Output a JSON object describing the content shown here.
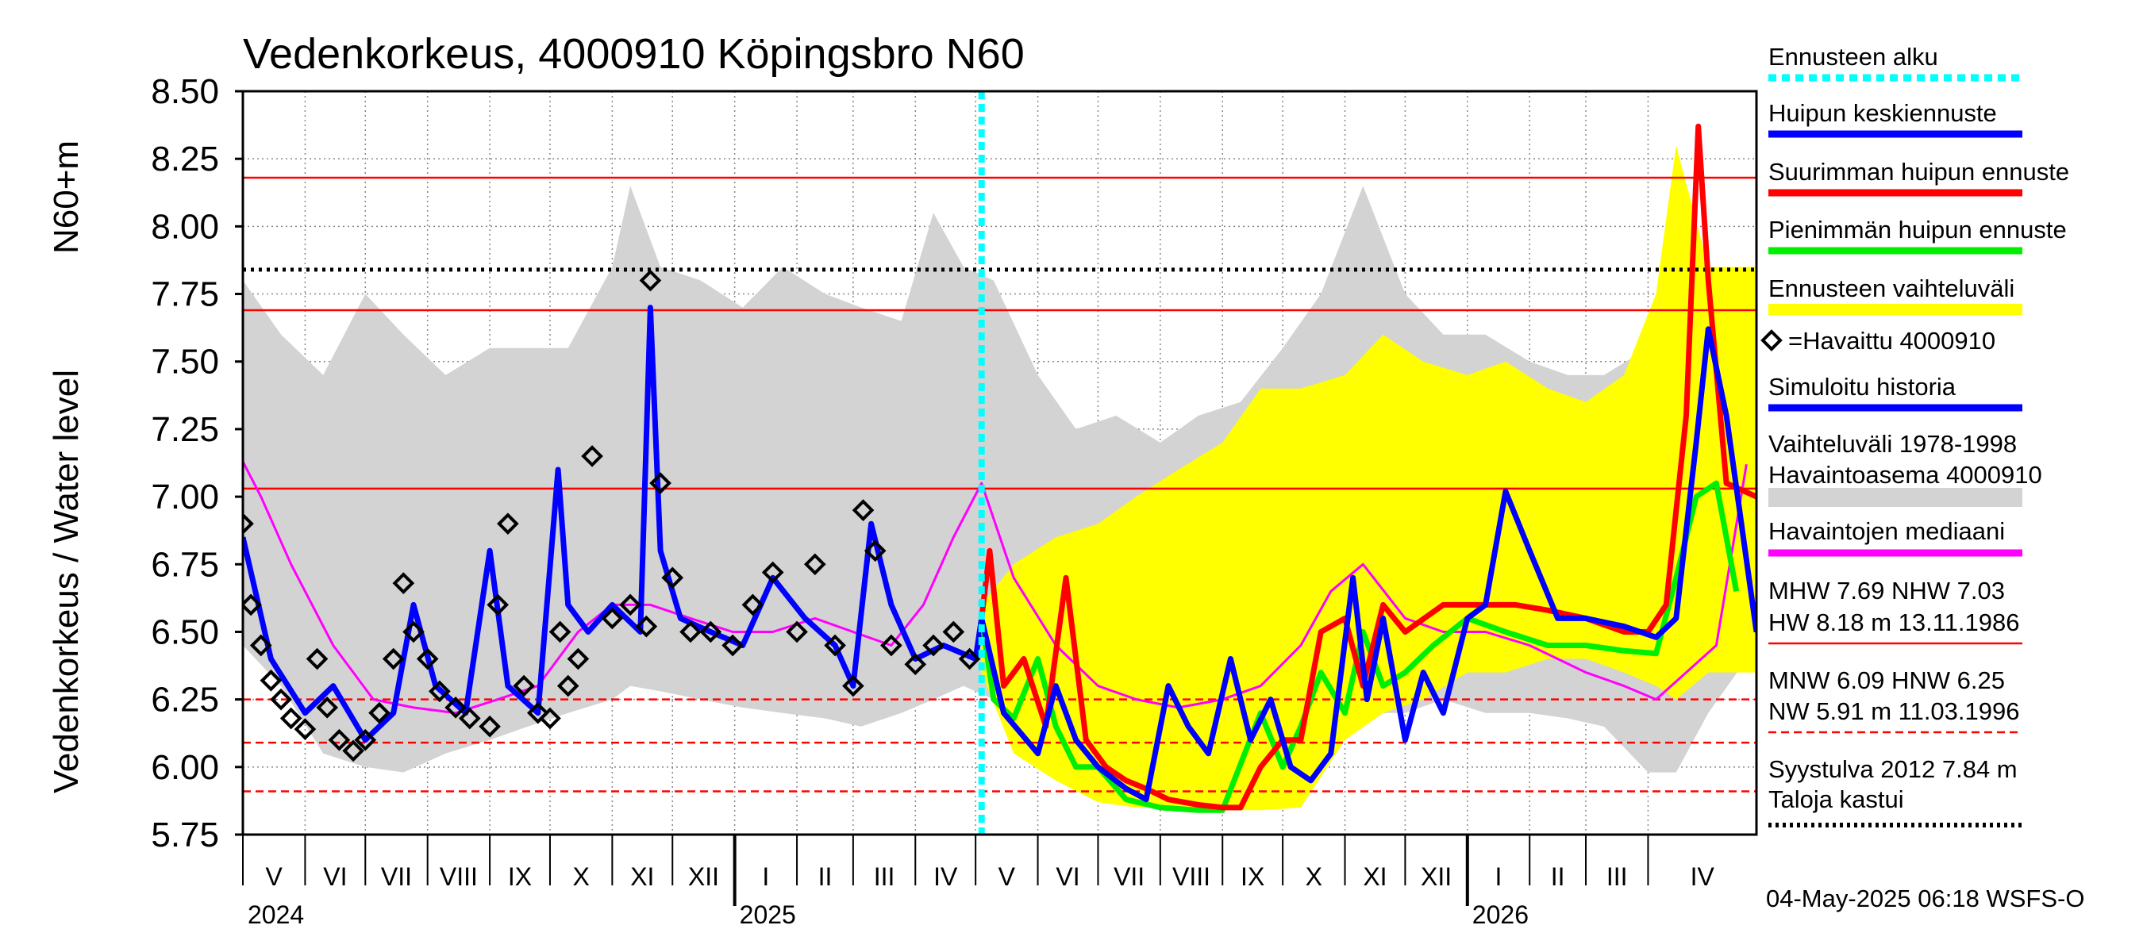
{
  "chart_data": {
    "type": "line",
    "title": "Vedenkorkeus, 4000910 Köpingsbro N60",
    "ylabel": "Vedenkorkeus / Water level",
    "ylabel_unit": "N60+m",
    "ylim": [
      5.75,
      8.5
    ],
    "yticks": [
      "5.75",
      "6.00",
      "6.25",
      "6.50",
      "6.75",
      "7.00",
      "7.25",
      "7.50",
      "7.75",
      "8.00",
      "8.25",
      "8.50"
    ],
    "x_start": "2024-05-01",
    "x_end": "2026-05-25",
    "forecast_start": "2025-05-04",
    "grid": true,
    "months": [
      {
        "label": "V",
        "start": "2024-05-01"
      },
      {
        "label": "VI",
        "start": "2024-06-01"
      },
      {
        "label": "VII",
        "start": "2024-07-01"
      },
      {
        "label": "VIII",
        "start": "2024-08-01"
      },
      {
        "label": "IX",
        "start": "2024-09-01"
      },
      {
        "label": "X",
        "start": "2024-10-01"
      },
      {
        "label": "XI",
        "start": "2024-11-01"
      },
      {
        "label": "XII",
        "start": "2024-12-01"
      },
      {
        "label": "I",
        "start": "2025-01-01"
      },
      {
        "label": "II",
        "start": "2025-02-01"
      },
      {
        "label": "III",
        "start": "2025-03-01"
      },
      {
        "label": "IV",
        "start": "2025-04-01"
      },
      {
        "label": "V",
        "start": "2025-05-01"
      },
      {
        "label": "VI",
        "start": "2025-06-01"
      },
      {
        "label": "VII",
        "start": "2025-07-01"
      },
      {
        "label": "VIII",
        "start": "2025-08-01"
      },
      {
        "label": "IX",
        "start": "2025-09-01"
      },
      {
        "label": "X",
        "start": "2025-10-01"
      },
      {
        "label": "XI",
        "start": "2025-11-01"
      },
      {
        "label": "XII",
        "start": "2025-12-01"
      },
      {
        "label": "I",
        "start": "2026-01-01"
      },
      {
        "label": "II",
        "start": "2026-02-01"
      },
      {
        "label": "III",
        "start": "2026-03-01"
      },
      {
        "label": "IV",
        "start": "2026-04-01"
      }
    ],
    "years": [
      {
        "label": "2024",
        "start": "2024-05-01"
      },
      {
        "label": "2025",
        "start": "2025-01-01"
      },
      {
        "label": "2026",
        "start": "2026-01-01"
      }
    ],
    "reference_lines": [
      {
        "key": "HW",
        "value": 8.18,
        "color": "#ff0000",
        "style": "solid"
      },
      {
        "key": "MHW",
        "value": 7.69,
        "color": "#ff0000",
        "style": "solid"
      },
      {
        "key": "NHW",
        "value": 7.03,
        "color": "#ff0000",
        "style": "solid"
      },
      {
        "key": "HNW",
        "value": 6.25,
        "color": "#ff0000",
        "style": "dashed"
      },
      {
        "key": "MNW",
        "value": 6.09,
        "color": "#ff0000",
        "style": "dashed"
      },
      {
        "key": "NW",
        "value": 5.91,
        "color": "#ff0000",
        "style": "dashed"
      },
      {
        "key": "Syystulva 2012",
        "value": 7.84,
        "color": "#000000",
        "style": "dotted"
      }
    ],
    "historical_range": {
      "name": "Vaihteluväli 1978-1998 Havaintoasema 4000910",
      "color": "#d3d3d3",
      "x": [
        "2024-05-01",
        "2024-05-20",
        "2024-06-10",
        "2024-07-01",
        "2024-07-20",
        "2024-08-10",
        "2024-09-01",
        "2024-09-20",
        "2024-10-10",
        "2024-11-01",
        "2024-11-10",
        "2024-11-25",
        "2024-12-15",
        "2025-01-05",
        "2025-01-25",
        "2025-02-15",
        "2025-03-05",
        "2025-03-25",
        "2025-04-10",
        "2025-04-25",
        "2025-05-10",
        "2025-06-01",
        "2025-06-20",
        "2025-07-10",
        "2025-08-01",
        "2025-08-20",
        "2025-09-10",
        "2025-10-01",
        "2025-10-20",
        "2025-11-10",
        "2025-12-01",
        "2025-12-20",
        "2026-01-10",
        "2026-02-01",
        "2026-02-20",
        "2026-03-10",
        "2026-04-01",
        "2026-04-15",
        "2026-05-01",
        "2026-05-25"
      ],
      "low": [
        6.45,
        6.3,
        6.05,
        6.0,
        5.98,
        6.05,
        6.1,
        6.15,
        6.2,
        6.25,
        6.3,
        6.28,
        6.25,
        6.22,
        6.2,
        6.18,
        6.15,
        6.2,
        6.25,
        6.3,
        6.25,
        6.15,
        6.1,
        6.0,
        6.0,
        6.05,
        6.05,
        6.1,
        6.15,
        6.2,
        6.2,
        6.25,
        6.2,
        6.2,
        6.18,
        6.15,
        5.98,
        5.98,
        6.2,
        6.45
      ],
      "high": [
        7.8,
        7.6,
        7.45,
        7.75,
        7.6,
        7.45,
        7.55,
        7.55,
        7.55,
        7.85,
        8.15,
        7.85,
        7.8,
        7.7,
        7.85,
        7.75,
        7.7,
        7.65,
        8.05,
        7.85,
        7.8,
        7.45,
        7.25,
        7.3,
        7.2,
        7.3,
        7.35,
        7.55,
        7.75,
        8.15,
        7.75,
        7.6,
        7.6,
        7.5,
        7.45,
        7.45,
        7.55,
        7.75,
        7.7,
        7.8
      ]
    },
    "forecast_range": {
      "name": "Ennusteen vaihteluväli",
      "color": "#ffff00",
      "x": [
        "2025-05-04",
        "2025-05-20",
        "2025-06-10",
        "2025-07-01",
        "2025-07-20",
        "2025-08-10",
        "2025-09-01",
        "2025-09-20",
        "2025-10-10",
        "2025-11-01",
        "2025-11-20",
        "2025-12-10",
        "2026-01-01",
        "2026-01-20",
        "2026-02-10",
        "2026-03-01",
        "2026-03-20",
        "2026-04-05",
        "2026-04-15",
        "2026-05-01",
        "2026-05-25"
      ],
      "low": [
        6.35,
        6.05,
        5.95,
        5.87,
        5.85,
        5.85,
        5.84,
        5.84,
        5.85,
        6.1,
        6.2,
        6.25,
        6.35,
        6.35,
        6.4,
        6.4,
        6.35,
        6.3,
        6.25,
        6.35,
        6.35
      ],
      "high": [
        6.6,
        6.75,
        6.85,
        6.9,
        7.0,
        7.1,
        7.2,
        7.4,
        7.4,
        7.45,
        7.6,
        7.5,
        7.45,
        7.5,
        7.4,
        7.35,
        7.45,
        7.75,
        8.3,
        7.85,
        7.85
      ]
    },
    "series": [
      {
        "name": "Havaintojen mediaani",
        "color": "#ff00ff",
        "x": [
          "2024-05-01",
          "2024-05-10",
          "2024-05-25",
          "2024-06-15",
          "2024-07-05",
          "2024-07-25",
          "2024-08-15",
          "2024-09-05",
          "2024-09-25",
          "2024-10-15",
          "2024-11-01",
          "2024-11-20",
          "2024-12-10",
          "2024-12-31",
          "2025-01-20",
          "2025-02-10",
          "2025-03-01",
          "2025-03-20",
          "2025-04-05",
          "2025-04-20",
          "2025-05-04",
          "2025-05-20",
          "2025-06-10",
          "2025-07-01",
          "2025-07-20",
          "2025-08-10",
          "2025-09-01",
          "2025-09-20",
          "2025-10-10",
          "2025-10-25",
          "2025-11-10",
          "2025-12-01",
          "2025-12-20",
          "2026-01-10",
          "2026-02-01",
          "2026-03-01",
          "2026-03-20",
          "2026-04-05",
          "2026-04-20",
          "2026-05-05",
          "2026-05-20"
        ],
        "y": [
          7.13,
          7.0,
          6.75,
          6.45,
          6.25,
          6.22,
          6.2,
          6.25,
          6.3,
          6.5,
          6.6,
          6.6,
          6.55,
          6.5,
          6.5,
          6.55,
          6.5,
          6.45,
          6.6,
          6.85,
          7.05,
          6.7,
          6.45,
          6.3,
          6.25,
          6.22,
          6.25,
          6.3,
          6.45,
          6.65,
          6.75,
          6.55,
          6.5,
          6.5,
          6.45,
          6.35,
          6.3,
          6.25,
          6.35,
          6.45,
          7.12
        ]
      },
      {
        "name": "Simuloitu historia",
        "color": "#0000ff",
        "x": [
          "2024-05-01",
          "2024-05-15",
          "2024-06-01",
          "2024-06-15",
          "2024-07-01",
          "2024-07-15",
          "2024-07-25",
          "2024-08-05",
          "2024-08-20",
          "2024-09-01",
          "2024-09-10",
          "2024-09-25",
          "2024-10-05",
          "2024-10-10",
          "2024-10-20",
          "2024-11-01",
          "2024-11-15",
          "2024-11-20",
          "2024-11-25",
          "2024-12-05",
          "2024-12-20",
          "2025-01-05",
          "2025-01-20",
          "2025-02-05",
          "2025-02-20",
          "2025-03-01",
          "2025-03-10",
          "2025-03-20",
          "2025-04-01",
          "2025-04-15",
          "2025-05-01",
          "2025-05-04"
        ],
        "y": [
          6.85,
          6.4,
          6.2,
          6.3,
          6.1,
          6.2,
          6.6,
          6.3,
          6.2,
          6.8,
          6.3,
          6.2,
          7.1,
          6.6,
          6.5,
          6.6,
          6.5,
          7.7,
          6.8,
          6.55,
          6.5,
          6.45,
          6.7,
          6.55,
          6.45,
          6.3,
          6.9,
          6.6,
          6.4,
          6.45,
          6.4,
          6.55
        ]
      },
      {
        "name": "Havaittu 4000910",
        "color": "#000000",
        "marker": "diamond",
        "x": [
          "2024-05-01",
          "2024-05-05",
          "2024-05-10",
          "2024-05-15",
          "2024-05-20",
          "2024-05-25",
          "2024-06-01",
          "2024-06-07",
          "2024-06-12",
          "2024-06-18",
          "2024-06-25",
          "2024-07-01",
          "2024-07-08",
          "2024-07-15",
          "2024-07-20",
          "2024-07-25",
          "2024-08-01",
          "2024-08-07",
          "2024-08-15",
          "2024-08-22",
          "2024-09-01",
          "2024-09-05",
          "2024-09-10",
          "2024-09-18",
          "2024-09-25",
          "2024-10-01",
          "2024-10-06",
          "2024-10-10",
          "2024-10-15",
          "2024-10-22",
          "2024-11-01",
          "2024-11-10",
          "2024-11-18",
          "2024-11-20",
          "2024-11-25",
          "2024-12-01",
          "2024-12-10",
          "2024-12-20",
          "2024-12-31",
          "2025-01-10",
          "2025-01-20",
          "2025-02-01",
          "2025-02-10",
          "2025-02-20",
          "2025-03-01",
          "2025-03-06",
          "2025-03-12",
          "2025-03-20",
          "2025-04-01",
          "2025-04-10",
          "2025-04-20",
          "2025-04-28"
        ],
        "y": [
          6.9,
          6.6,
          6.45,
          6.32,
          6.25,
          6.18,
          6.14,
          6.4,
          6.22,
          6.1,
          6.06,
          6.1,
          6.2,
          6.4,
          6.68,
          6.5,
          6.4,
          6.28,
          6.22,
          6.18,
          6.15,
          6.6,
          6.9,
          6.3,
          6.2,
          6.18,
          6.5,
          6.3,
          6.4,
          7.15,
          6.55,
          6.6,
          6.52,
          7.8,
          7.05,
          6.7,
          6.5,
          6.5,
          6.45,
          6.6,
          6.72,
          6.5,
          6.75,
          6.45,
          6.3,
          6.95,
          6.8,
          6.45,
          6.38,
          6.45,
          6.5,
          6.4
        ]
      },
      {
        "name": "Pienimmän huipun ennuste",
        "color": "#00ee00",
        "x": [
          "2025-05-04",
          "2025-05-10",
          "2025-05-20",
          "2025-06-01",
          "2025-06-10",
          "2025-06-20",
          "2025-07-01",
          "2025-07-15",
          "2025-08-01",
          "2025-08-20",
          "2025-09-01",
          "2025-09-20",
          "2025-10-01",
          "2025-10-10",
          "2025-10-20",
          "2025-11-01",
          "2025-11-10",
          "2025-11-20",
          "2025-12-01",
          "2025-12-15",
          "2026-01-01",
          "2026-01-20",
          "2026-02-10",
          "2026-03-01",
          "2026-03-20",
          "2026-04-05",
          "2026-04-15",
          "2026-04-25",
          "2026-05-05",
          "2026-05-15"
        ],
        "y": [
          6.55,
          6.25,
          6.18,
          6.4,
          6.15,
          6.0,
          6.0,
          5.88,
          5.85,
          5.84,
          5.84,
          6.2,
          6.0,
          6.15,
          6.35,
          6.2,
          6.5,
          6.3,
          6.35,
          6.45,
          6.55,
          6.5,
          6.45,
          6.45,
          6.43,
          6.42,
          6.7,
          7.0,
          7.05,
          6.65
        ]
      },
      {
        "name": "Suurimman huipun ennuste",
        "color": "#ff0000",
        "x": [
          "2025-05-04",
          "2025-05-08",
          "2025-05-15",
          "2025-05-25",
          "2025-06-05",
          "2025-06-15",
          "2025-06-25",
          "2025-07-05",
          "2025-07-15",
          "2025-07-25",
          "2025-08-05",
          "2025-08-20",
          "2025-09-01",
          "2025-09-10",
          "2025-09-20",
          "2025-10-01",
          "2025-10-10",
          "2025-10-20",
          "2025-11-01",
          "2025-11-10",
          "2025-11-20",
          "2025-12-01",
          "2025-12-20",
          "2026-01-10",
          "2026-01-25",
          "2026-02-10",
          "2026-03-01",
          "2026-03-20",
          "2026-04-01",
          "2026-04-10",
          "2026-04-20",
          "2026-04-26",
          "2026-05-01",
          "2026-05-10",
          "2026-05-25"
        ],
        "y": [
          6.55,
          6.8,
          6.3,
          6.4,
          6.15,
          6.7,
          6.1,
          6.0,
          5.95,
          5.92,
          5.88,
          5.86,
          5.85,
          5.85,
          6.0,
          6.1,
          6.1,
          6.5,
          6.55,
          6.3,
          6.6,
          6.5,
          6.6,
          6.6,
          6.6,
          6.58,
          6.55,
          6.5,
          6.5,
          6.6,
          7.3,
          8.37,
          7.8,
          7.05,
          7.0
        ]
      },
      {
        "name": "Huipun keskiennuste",
        "color": "#0000ff",
        "x": [
          "2025-05-04",
          "2025-05-15",
          "2025-06-01",
          "2025-06-10",
          "2025-06-20",
          "2025-07-01",
          "2025-07-15",
          "2025-07-25",
          "2025-08-05",
          "2025-08-15",
          "2025-08-25",
          "2025-09-05",
          "2025-09-15",
          "2025-09-25",
          "2025-10-05",
          "2025-10-15",
          "2025-10-25",
          "2025-11-05",
          "2025-11-12",
          "2025-11-20",
          "2025-12-01",
          "2025-12-10",
          "2025-12-20",
          "2026-01-01",
          "2026-01-10",
          "2026-01-20",
          "2026-02-01",
          "2026-02-15",
          "2026-03-01",
          "2026-03-20",
          "2026-04-05",
          "2026-04-15",
          "2026-04-25",
          "2026-05-01",
          "2026-05-10",
          "2026-05-25"
        ],
        "y": [
          6.55,
          6.2,
          6.05,
          6.3,
          6.1,
          6.0,
          5.92,
          5.88,
          6.3,
          6.15,
          6.05,
          6.4,
          6.1,
          6.25,
          6.0,
          5.95,
          6.05,
          6.7,
          6.25,
          6.55,
          6.1,
          6.35,
          6.2,
          6.55,
          6.6,
          7.02,
          6.8,
          6.55,
          6.55,
          6.52,
          6.48,
          6.55,
          7.2,
          7.62,
          7.3,
          6.5
        ]
      }
    ],
    "legend": {
      "position": "right",
      "items": [
        {
          "label": "Ennusteen alku",
          "color": "#00ffff",
          "style": "dotted"
        },
        {
          "label": "Huipun keskiennuste",
          "color": "#0000ff",
          "style": "solid"
        },
        {
          "label": "Suurimman huipun ennuste",
          "color": "#ff0000",
          "style": "solid"
        },
        {
          "label": "Pienimmän huipun ennuste",
          "color": "#00ee00",
          "style": "solid"
        },
        {
          "label": "Ennusteen vaihteluväli",
          "color": "#ffff00",
          "style": "solid"
        },
        {
          "label": "=Havaittu 4000910",
          "color": "#000000",
          "style": "marker"
        },
        {
          "label": "Simuloitu historia",
          "color": "#0000ff",
          "style": "solid"
        },
        {
          "label": "Vaihteluväli 1978-1998",
          "color": "#d3d3d3",
          "style": "none"
        },
        {
          "label": " Havaintoasema 4000910",
          "color": "#d3d3d3",
          "style": "solid"
        },
        {
          "label": "Havaintojen mediaani",
          "color": "#ff00ff",
          "style": "solid"
        }
      ]
    },
    "stats": {
      "mhw_line": "MHW   7.69 NHW   7.03",
      "hw_line": "HW   8.18 m 13.11.1986",
      "mnw_line": "MNW   6.09 HNW   6.25",
      "nw_line": "NW   5.91 m 11.03.1996",
      "syystulva_line": "Syystulva 2012 7.84 m",
      "taloja_line": "Taloja kastui"
    },
    "timestamp": "04-May-2025 06:18 WSFS-O"
  }
}
